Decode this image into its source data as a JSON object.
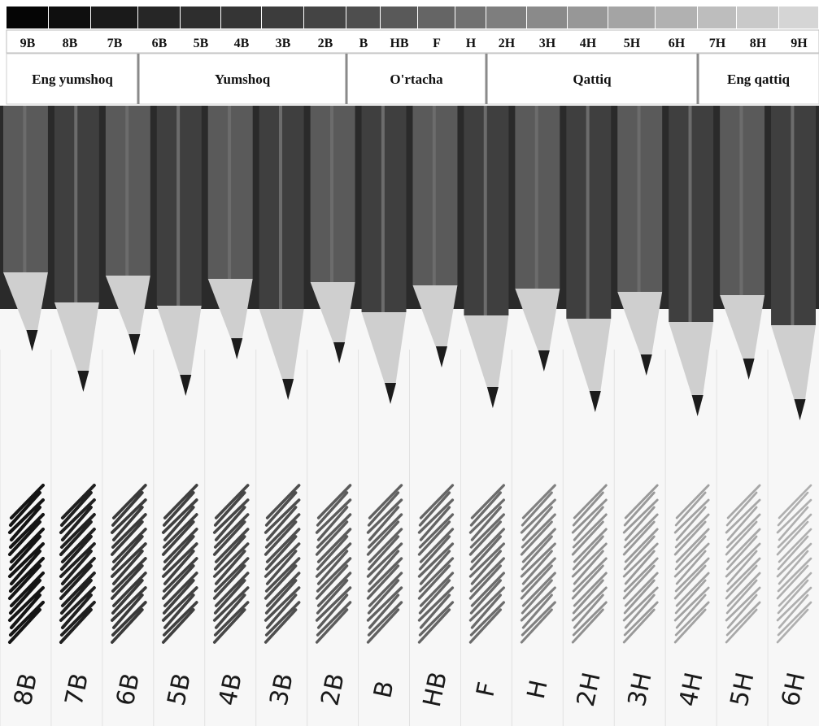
{
  "scale": {
    "grades": [
      {
        "label": "9B",
        "swatch": "#050505"
      },
      {
        "label": "8B",
        "swatch": "#0f0f0f"
      },
      {
        "label": "7B",
        "swatch": "#1a1a1a"
      },
      {
        "label": "6B",
        "swatch": "#262626"
      },
      {
        "label": "5B",
        "swatch": "#2e2e2e"
      },
      {
        "label": "4B",
        "swatch": "#353535"
      },
      {
        "label": "3B",
        "swatch": "#3c3c3c"
      },
      {
        "label": "2B",
        "swatch": "#444444"
      },
      {
        "label": "B",
        "swatch": "#4e4e4e"
      },
      {
        "label": "HB",
        "swatch": "#595959"
      },
      {
        "label": "F",
        "swatch": "#656565"
      },
      {
        "label": "H",
        "swatch": "#717171"
      },
      {
        "label": "2H",
        "swatch": "#7e7e7e"
      },
      {
        "label": "3H",
        "swatch": "#8a8a8a"
      },
      {
        "label": "4H",
        "swatch": "#979797"
      },
      {
        "label": "5H",
        "swatch": "#a4a4a4"
      },
      {
        "label": "6H",
        "swatch": "#b1b1b1"
      },
      {
        "label": "7H",
        "swatch": "#bdbdbd"
      },
      {
        "label": "8H",
        "swatch": "#c9c9c9"
      },
      {
        "label": "9H",
        "swatch": "#d5d5d5"
      }
    ],
    "groups": [
      {
        "label": "Eng yumshoq",
        "from": 0,
        "to": 2
      },
      {
        "label": "Yumshoq",
        "from": 3,
        "to": 7
      },
      {
        "label": "O'rtacha",
        "from": 8,
        "to": 11
      },
      {
        "label": "Qattiq",
        "from": 12,
        "to": 16
      },
      {
        "label": "Eng qattiq",
        "from": 17,
        "to": 19
      }
    ]
  },
  "photo": {
    "pencils": [
      {
        "grade": "8B",
        "scribble_darkness": 0.95
      },
      {
        "grade": "7B",
        "scribble_darkness": 0.9
      },
      {
        "grade": "6B",
        "scribble_darkness": 0.78
      },
      {
        "grade": "5B",
        "scribble_darkness": 0.75
      },
      {
        "grade": "4B",
        "scribble_darkness": 0.72
      },
      {
        "grade": "3B",
        "scribble_darkness": 0.68
      },
      {
        "grade": "2B",
        "scribble_darkness": 0.62
      },
      {
        "grade": "B",
        "scribble_darkness": 0.6
      },
      {
        "grade": "HB",
        "scribble_darkness": 0.58
      },
      {
        "grade": "F",
        "scribble_darkness": 0.55
      },
      {
        "grade": "H",
        "scribble_darkness": 0.45
      },
      {
        "grade": "2H",
        "scribble_darkness": 0.38
      },
      {
        "grade": "3H",
        "scribble_darkness": 0.34
      },
      {
        "grade": "4H",
        "scribble_darkness": 0.3
      },
      {
        "grade": "5H",
        "scribble_darkness": 0.27
      },
      {
        "grade": "6H",
        "scribble_darkness": 0.24
      }
    ],
    "colors": {
      "pencil_body": "#3f3f3f",
      "pencil_body_light": "#5a5a5a",
      "wood": "#cfcfcf",
      "lead": "#1c1c1c",
      "paper": "#f7f7f7"
    }
  }
}
